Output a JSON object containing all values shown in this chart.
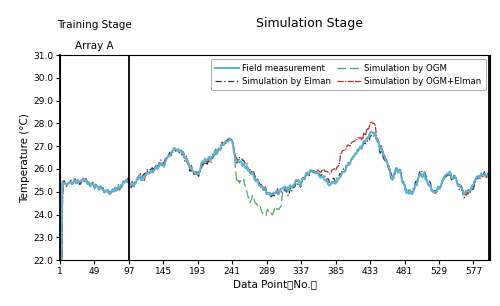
{
  "title_training": "Training Stage",
  "title_training_sub": "Array A",
  "title_simulation": "Simulation Stage",
  "xlabel": "Data Point （No.）",
  "ylabel": "Temperature (°C)",
  "xlim": [
    1,
    600
  ],
  "ylim": [
    22.0,
    31.0
  ],
  "yticks": [
    22.0,
    23.0,
    24.0,
    25.0,
    26.0,
    27.0,
    28.0,
    29.0,
    30.0,
    31.0
  ],
  "xticks": [
    1,
    49,
    97,
    145,
    193,
    241,
    289,
    337,
    385,
    433,
    481,
    529,
    577
  ],
  "vline1_x": 1,
  "vline2_x": 97,
  "vline3_x": 599,
  "legend": [
    {
      "label": "Field measurement",
      "color": "#5ab4d6",
      "ls": "-",
      "lw": 1.4
    },
    {
      "label": "Simulation by Elman",
      "color": "#333333",
      "ls": "-.",
      "lw": 0.9
    },
    {
      "label": "Simulation by OGM",
      "color": "#4daa6a",
      "ls": "--",
      "lw": 0.9
    },
    {
      "label": "Simulation by OGM+Elman",
      "color": "#b03030",
      "ls": "-.",
      "lw": 0.9
    }
  ],
  "background_color": "#ffffff",
  "figsize": [
    5.0,
    3.06
  ],
  "dpi": 100
}
